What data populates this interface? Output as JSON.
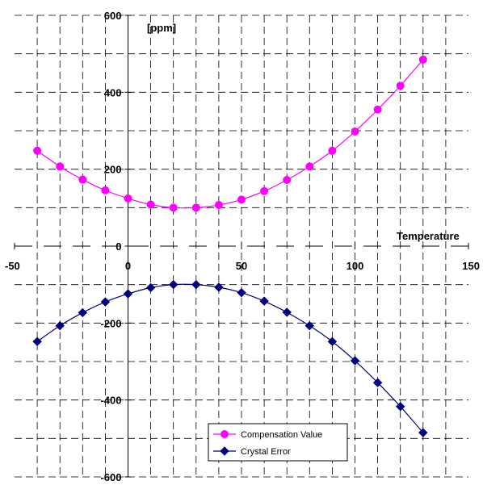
{
  "chart_data": {
    "type": "line",
    "xlabel": "Temperature",
    "ylabel": "[ppm]",
    "xlim": [
      -50,
      150
    ],
    "ylim": [
      -600,
      600
    ],
    "x_ticks": [
      -50,
      0,
      50,
      100,
      150
    ],
    "y_ticks": [
      -600,
      -400,
      -200,
      0,
      200,
      400,
      600
    ],
    "x_tick_labels": [
      "-50",
      "0",
      "50",
      "100",
      "150"
    ],
    "y_tick_labels": [
      "-600",
      "-400",
      "-200",
      "0",
      "200",
      "400",
      "600"
    ],
    "grid": true,
    "legend_position": "bottom-right",
    "x": [
      -40,
      -30,
      -20,
      -10,
      0,
      10,
      20,
      30,
      40,
      50,
      60,
      70,
      80,
      90,
      100,
      110,
      120,
      130
    ],
    "series": [
      {
        "name": "Compensation Value",
        "color": "#ff00ff",
        "marker": "circle",
        "values": [
          248,
          207,
          173,
          145,
          124,
          108,
          100,
          100,
          107,
          121,
          143,
          172,
          207,
          248,
          298,
          355,
          417,
          485
        ]
      },
      {
        "name": "Crystal Error",
        "color": "#000080",
        "marker": "diamond",
        "values": [
          -248,
          -207,
          -173,
          -145,
          -124,
          -108,
          -100,
          -100,
          -107,
          -121,
          -143,
          -172,
          -207,
          -248,
          -298,
          -355,
          -417,
          -485
        ]
      }
    ]
  }
}
